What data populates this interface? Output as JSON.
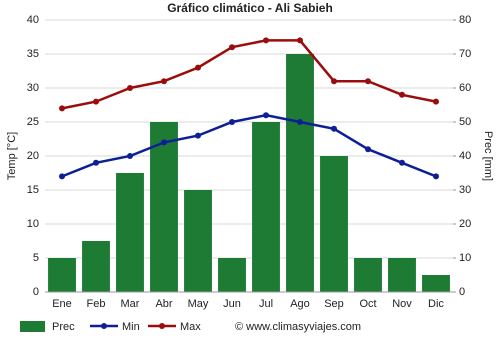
{
  "chart_data": {
    "type": "bar",
    "title": "Gráfico climático - Ali Sabieh",
    "y_label": "Temp [°C]",
    "y2_label": "Prec [mm]",
    "credit": "© www.climasyviajes.com",
    "categories": [
      "Ene",
      "Feb",
      "Mar",
      "Abr",
      "May",
      "Jun",
      "Jul",
      "Ago",
      "Sep",
      "Oct",
      "Nov",
      "Dic"
    ],
    "series": [
      {
        "name": "Prec",
        "type": "bar",
        "axis": "y2",
        "color": "#1e7b34",
        "values": [
          10,
          15,
          35,
          50,
          30,
          10,
          50,
          70,
          40,
          10,
          10,
          5
        ]
      },
      {
        "name": "Min",
        "type": "line",
        "color": "#0d1f96",
        "values": [
          17,
          19,
          20,
          22,
          23,
          25,
          26,
          25,
          24,
          21,
          19,
          17
        ]
      },
      {
        "name": "Max",
        "type": "line",
        "color": "#9b0d0d",
        "values": [
          27,
          28,
          30,
          31,
          33,
          36,
          37,
          37,
          31,
          31,
          29,
          28
        ]
      }
    ],
    "ylim": [
      0,
      40
    ],
    "yticks": [
      0,
      5,
      10,
      15,
      20,
      25,
      30,
      35,
      40
    ],
    "y2lim": [
      0,
      80
    ],
    "y2ticks": [
      0,
      10,
      20,
      30,
      40,
      50,
      60,
      70,
      80
    ],
    "grid": true
  }
}
